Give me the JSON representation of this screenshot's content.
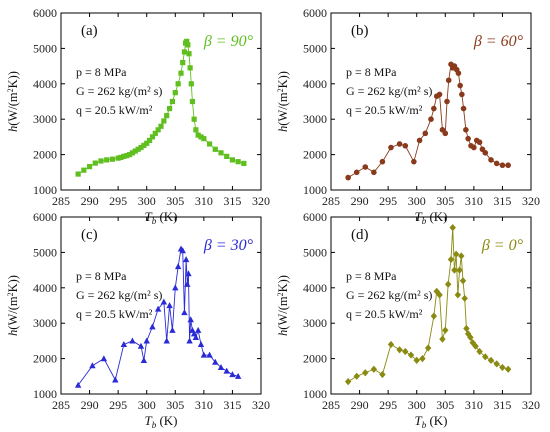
{
  "figure": {
    "panel_count": 4
  },
  "chart_data": [
    {
      "type": "scatter",
      "panel_label": "(a)",
      "beta_label": "β = 90°",
      "color": "#5fbf1f",
      "marker": "square",
      "xlabel": "T_b (K)",
      "ylabel": "h (W/(m²K))",
      "xlim": [
        285,
        320
      ],
      "ylim": [
        1000,
        6000
      ],
      "x_ticks": [
        "285",
        "290",
        "295",
        "300",
        "305",
        "310",
        "315",
        "320"
      ],
      "y_ticks": [
        "1000",
        "2000",
        "3000",
        "4000",
        "5000",
        "6000"
      ],
      "annotations": [
        "p = 8 MPa",
        "G = 262 kg/(m² s)",
        "q = 20.5 kW/m²"
      ],
      "series": [
        {
          "x": [
            288,
            289,
            290,
            291,
            292,
            293,
            294,
            295,
            295.5,
            296,
            296.5,
            297,
            297.5,
            298,
            298.5,
            299,
            299.5,
            300,
            300.5,
            301,
            301.5,
            302,
            302.5,
            303,
            303.5,
            304,
            304.5,
            305,
            305.5,
            306,
            306.3,
            306.6,
            306.8,
            307,
            307.2,
            307.4,
            307.6,
            307.8,
            308,
            308.3,
            308.6,
            309,
            309.5,
            310,
            311,
            312,
            313,
            314,
            315,
            316,
            317
          ],
          "y": [
            1450,
            1560,
            1660,
            1760,
            1820,
            1850,
            1870,
            1900,
            1920,
            1950,
            1970,
            2000,
            2050,
            2100,
            2150,
            2200,
            2260,
            2320,
            2400,
            2500,
            2600,
            2700,
            2800,
            2950,
            3100,
            3300,
            3500,
            3750,
            4000,
            4300,
            4600,
            4900,
            5150,
            5200,
            5100,
            4850,
            4450,
            4000,
            3500,
            3000,
            2700,
            2550,
            2500,
            2450,
            2300,
            2150,
            2050,
            1950,
            1850,
            1800,
            1750
          ]
        }
      ]
    },
    {
      "type": "scatter",
      "panel_label": "(b)",
      "beta_label": "β = 60°",
      "color": "#8a3a1c",
      "marker": "circle",
      "xlabel": "T_b (K)",
      "ylabel": "h (W/(m²K))",
      "xlim": [
        285,
        320
      ],
      "ylim": [
        1000,
        6000
      ],
      "x_ticks": [
        "285",
        "290",
        "295",
        "300",
        "305",
        "310",
        "315",
        "320"
      ],
      "y_ticks": [
        "1000",
        "2000",
        "3000",
        "4000",
        "5000",
        "6000"
      ],
      "annotations": [
        "p = 8 MPa",
        "G = 262 kg/(m² s)",
        "q = 20.5 kW/m²"
      ],
      "series": [
        {
          "x": [
            288,
            289.5,
            291,
            292.5,
            294,
            295.5,
            297,
            298,
            299.5,
            300.5,
            301.5,
            302.5,
            303,
            303.5,
            304,
            304.5,
            305,
            305.3,
            305.6,
            306,
            306.3,
            306.6,
            307,
            307.3,
            307.6,
            307.9,
            308.2,
            308.6,
            309,
            309.5,
            310,
            310.5,
            311,
            311.5,
            312,
            313,
            314,
            315,
            316
          ],
          "y": [
            1350,
            1500,
            1650,
            1500,
            1800,
            2200,
            2300,
            2250,
            1800,
            2400,
            2600,
            3000,
            3300,
            3650,
            3700,
            2700,
            2600,
            3500,
            4100,
            4550,
            4450,
            4500,
            4400,
            4300,
            3950,
            3700,
            3300,
            2700,
            2450,
            2250,
            2200,
            2400,
            2350,
            2150,
            2050,
            1850,
            1750,
            1700,
            1700
          ]
        }
      ]
    },
    {
      "type": "scatter",
      "panel_label": "(c)",
      "beta_label": "β = 30°",
      "color": "#2a2ad6",
      "marker": "triangle",
      "xlabel": "T_b (K)",
      "ylabel": "h (W/(m²K))",
      "xlim": [
        285,
        320
      ],
      "ylim": [
        1000,
        6000
      ],
      "x_ticks": [
        "285",
        "290",
        "295",
        "300",
        "305",
        "310",
        "315",
        "320"
      ],
      "y_ticks": [
        "1000",
        "2000",
        "3000",
        "4000",
        "5000",
        "6000"
      ],
      "annotations": [
        "p = 8 MPa",
        "G = 262 kg/(m² s)",
        "q = 20.5 kW/m²"
      ],
      "series": [
        {
          "x": [
            288,
            290.5,
            292.5,
            294.5,
            296,
            297.5,
            299,
            299.5,
            300,
            301,
            302,
            303,
            303.5,
            304,
            304.5,
            305,
            305.5,
            306,
            306.3,
            306.6,
            306.9,
            307.1,
            307.3,
            307.5,
            307.7,
            308,
            308.3,
            308.6,
            309,
            309.5,
            310,
            311,
            312,
            313,
            314,
            315,
            316
          ],
          "y": [
            1250,
            1800,
            2000,
            1400,
            2400,
            2500,
            2350,
            1950,
            2500,
            2900,
            3400,
            3600,
            2500,
            3500,
            2800,
            4000,
            4600,
            5100,
            5050,
            3300,
            4800,
            4100,
            4400,
            2500,
            3100,
            2800,
            2700,
            2600,
            2800,
            2400,
            2100,
            2100,
            1900,
            1750,
            1650,
            1550,
            1500
          ]
        }
      ]
    },
    {
      "type": "scatter",
      "panel_label": "(d)",
      "beta_label": "β = 0°",
      "color": "#8a8a12",
      "marker": "diamond",
      "xlabel": "T_b (K)",
      "ylabel": "h (W/(m²K))",
      "xlim": [
        285,
        320
      ],
      "ylim": [
        1000,
        6000
      ],
      "x_ticks": [
        "285",
        "290",
        "295",
        "300",
        "305",
        "310",
        "315",
        "320"
      ],
      "y_ticks": [
        "1000",
        "2000",
        "3000",
        "4000",
        "5000",
        "6000"
      ],
      "annotations": [
        "p = 8 MPa",
        "G = 262 kg/(m² s)",
        "q = 20.5 kW/m²"
      ],
      "series": [
        {
          "x": [
            288,
            289.5,
            291,
            292.5,
            294,
            295.5,
            297,
            298,
            299,
            300,
            301,
            302,
            303,
            303.5,
            304,
            304.5,
            305,
            305.5,
            306,
            306.3,
            306.6,
            306.9,
            307.2,
            307.5,
            307.8,
            308.1,
            308.4,
            308.7,
            309,
            309.4,
            309.8,
            310.3,
            311,
            312,
            313,
            314,
            315,
            316
          ],
          "y": [
            1350,
            1500,
            1600,
            1700,
            1550,
            2400,
            2250,
            2200,
            2100,
            1950,
            2000,
            2300,
            3200,
            3900,
            3800,
            2550,
            2800,
            4100,
            4800,
            5700,
            4500,
            4950,
            3800,
            4500,
            4900,
            4200,
            3700,
            2850,
            2700,
            2600,
            2450,
            2350,
            2200,
            2050,
            1950,
            1850,
            1750,
            1700
          ]
        }
      ]
    }
  ]
}
